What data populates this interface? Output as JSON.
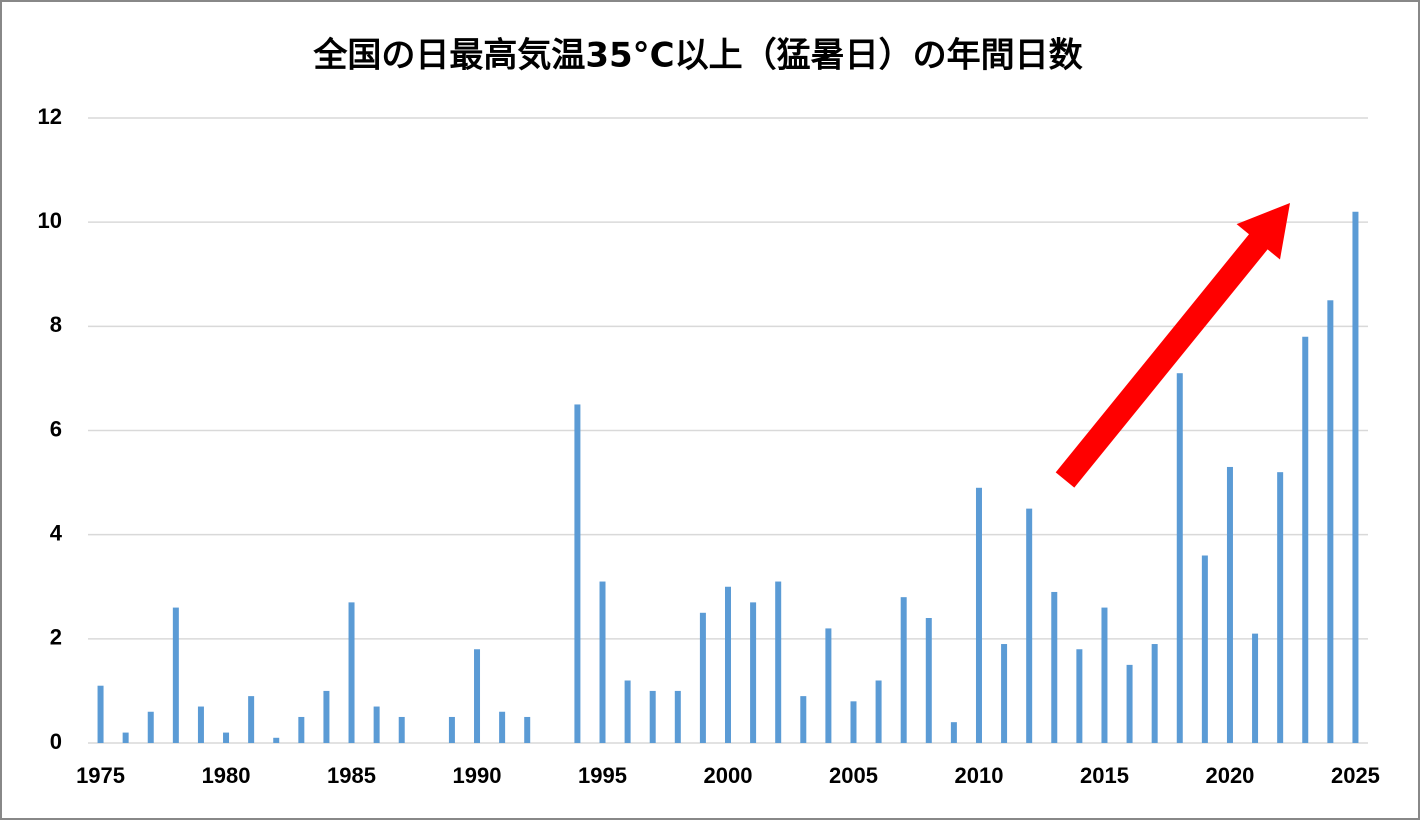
{
  "chart_data": {
    "type": "bar",
    "title": "全国の日最高気温35°C以上（猛暑日）の年間日数",
    "x": [
      1975,
      1976,
      1977,
      1978,
      1979,
      1980,
      1981,
      1982,
      1983,
      1984,
      1985,
      1986,
      1987,
      1988,
      1989,
      1990,
      1991,
      1992,
      1993,
      1994,
      1995,
      1996,
      1997,
      1998,
      1999,
      2000,
      2001,
      2002,
      2003,
      2004,
      2005,
      2006,
      2007,
      2008,
      2009,
      2010,
      2011,
      2012,
      2013,
      2014,
      2015,
      2016,
      2017,
      2018,
      2019,
      2020,
      2021,
      2022,
      2023,
      2024,
      2025
    ],
    "values": [
      1.1,
      0.2,
      0.6,
      2.6,
      0.7,
      0.2,
      0.9,
      0.1,
      0.5,
      1.0,
      2.7,
      0.7,
      0.5,
      0,
      0.5,
      1.8,
      0.6,
      0.5,
      0,
      6.5,
      3.1,
      1.2,
      1.0,
      1.0,
      2.5,
      3.0,
      2.7,
      3.1,
      0.9,
      2.2,
      0.8,
      1.2,
      2.8,
      2.4,
      0.4,
      4.9,
      1.9,
      4.5,
      2.9,
      1.8,
      2.6,
      1.5,
      1.9,
      7.1,
      3.6,
      5.3,
      2.1,
      5.2,
      7.8,
      8.5,
      10.2
    ],
    "color": "#5b9bd5",
    "xlim": [
      1974.5,
      2025.5
    ],
    "xticks": [
      1975,
      1980,
      1985,
      1990,
      1995,
      2000,
      2005,
      2010,
      2015,
      2020,
      2025
    ],
    "ylim": [
      0,
      12
    ],
    "yticks": [
      0,
      2,
      4,
      6,
      8,
      10,
      12
    ],
    "grid": true
  }
}
